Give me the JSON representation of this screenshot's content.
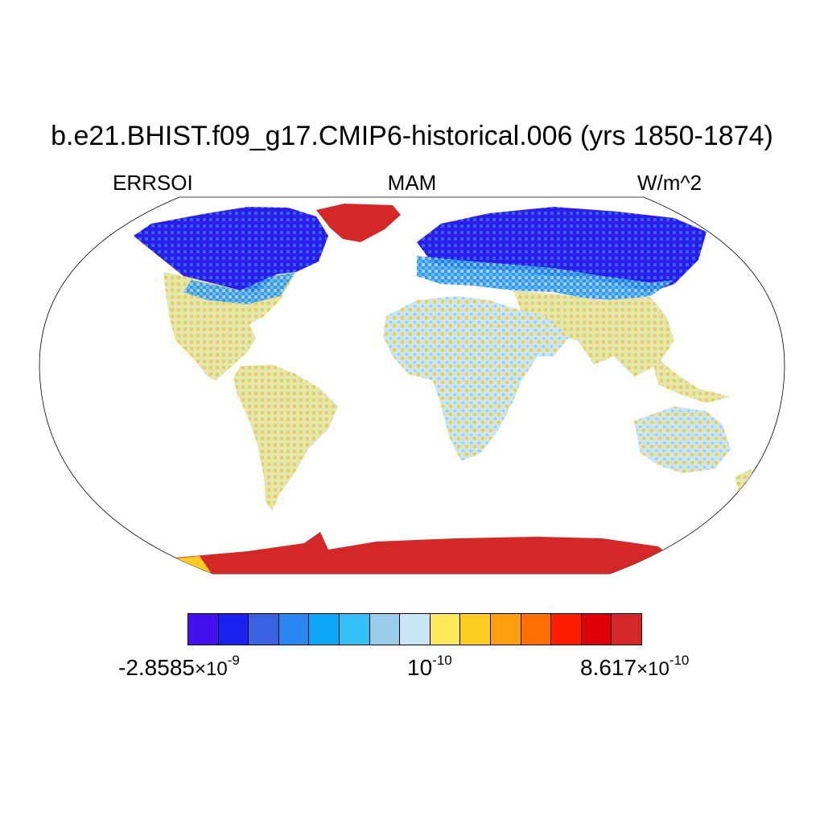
{
  "title": "b.e21.BHIST.f09_g17.CMIP6-historical.006 (yrs 1850-1874)",
  "left_label": "ERRSOI",
  "center_label": "MAM",
  "right_label": "W/m^2",
  "projection": "robinson",
  "colorbar": {
    "colors": [
      "#4410f0",
      "#1a22f0",
      "#3a62e0",
      "#2a86f0",
      "#0ea8f8",
      "#36c0f8",
      "#9acdea",
      "#c9e6f6",
      "#ffe95a",
      "#ffcc22",
      "#ff9f10",
      "#ff6e00",
      "#ff1c00",
      "#e00008",
      "#d42828"
    ],
    "min_label": {
      "mantissa": "-2.8585",
      "times": "×10",
      "exponent": "-9"
    },
    "mid_label": {
      "base": "10",
      "exponent": "-10"
    },
    "max_label": {
      "mantissa": "8.617",
      "times": "×10",
      "exponent": "-10"
    }
  },
  "chart_data": {
    "type": "heatmap",
    "title": "b.e21.BHIST.f09_g17.CMIP6-historical.006 (yrs 1850-1874)",
    "variable": "ERRSOI",
    "season": "MAM",
    "units": "W/m^2",
    "levels_labeled": [
      "-2.8585×10^-9",
      "10^-10",
      "8.617×10^-10"
    ]
  }
}
